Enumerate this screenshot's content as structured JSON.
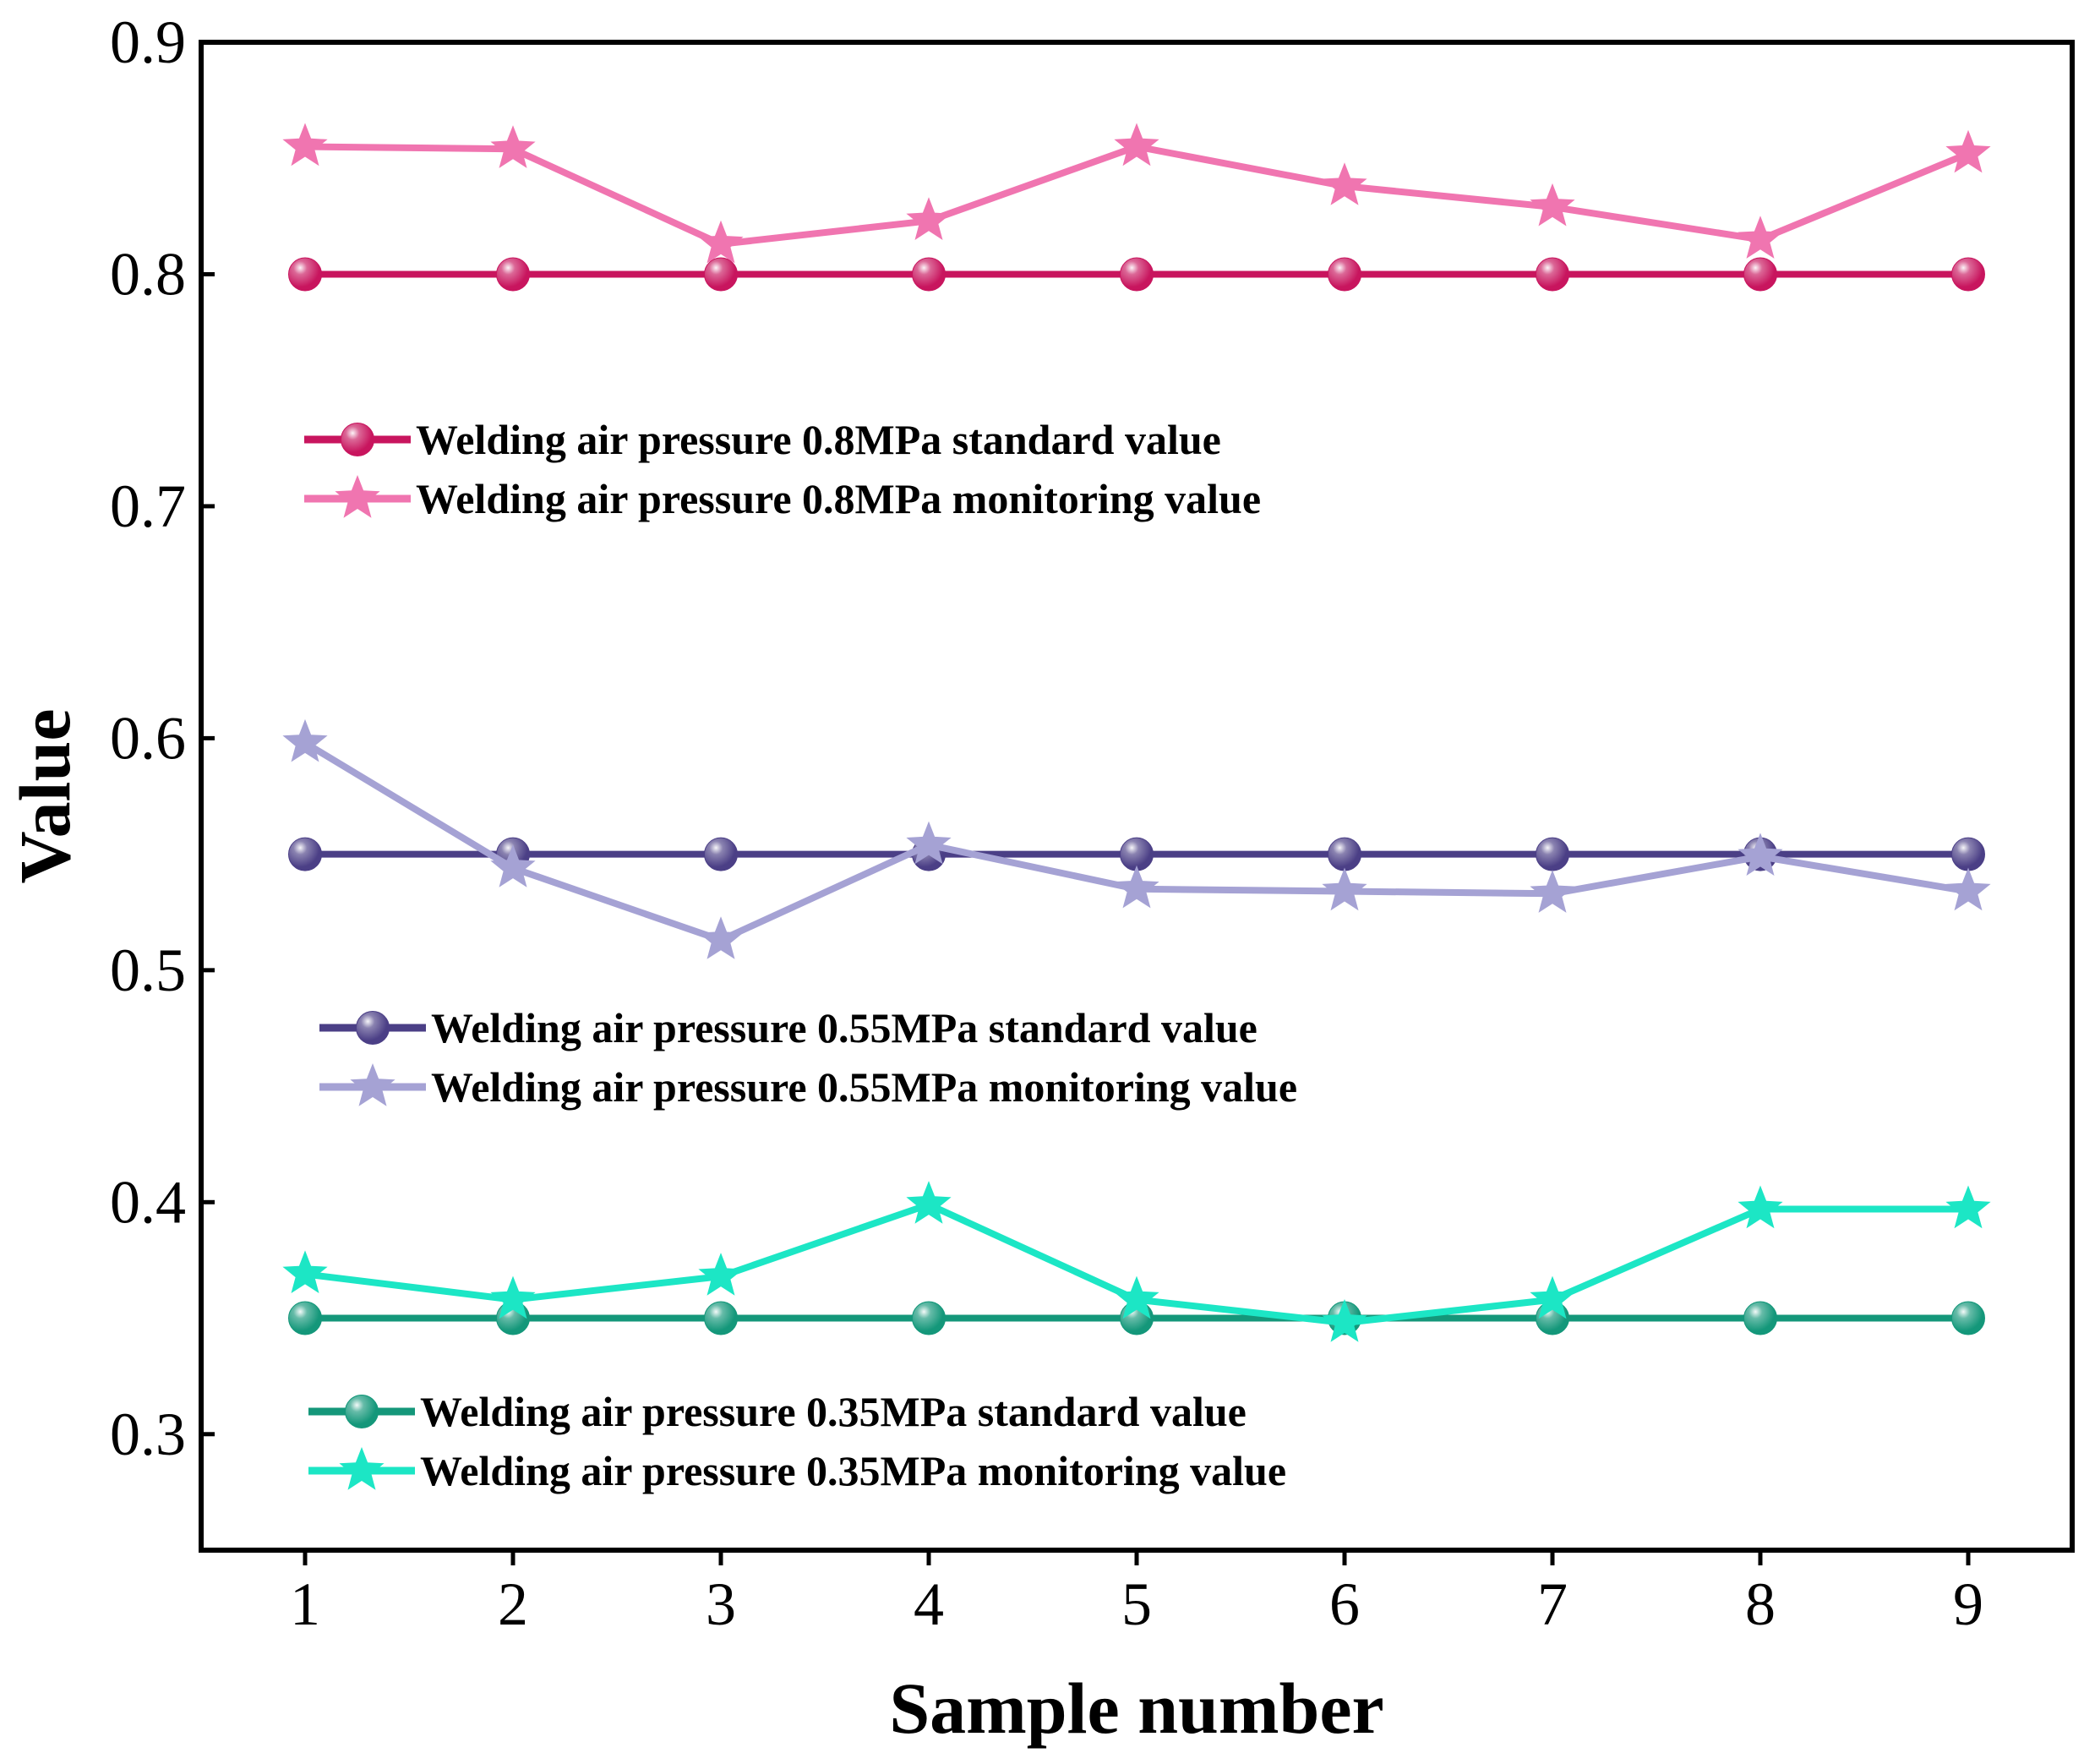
{
  "chart_data": {
    "type": "line",
    "xlabel": "Sample number",
    "ylabel": "Value",
    "x": [
      1,
      2,
      3,
      4,
      5,
      6,
      7,
      8,
      9
    ],
    "x_ticks": [
      "1",
      "2",
      "3",
      "4",
      "5",
      "6",
      "7",
      "8",
      "9"
    ],
    "xlim": [
      0.5,
      9.5
    ],
    "y_ticks": [
      "0.3",
      "0.4",
      "0.5",
      "0.6",
      "0.7",
      "0.8",
      "0.9"
    ],
    "y_tick_values": [
      0.3,
      0.4,
      0.5,
      0.6,
      0.7,
      0.8,
      0.9
    ],
    "ylim": [
      0.25,
      0.9
    ],
    "grid": false,
    "series": [
      {
        "name": "Welding air pressure 0.8MPa standard value",
        "marker": "circle",
        "color": "#C8155E",
        "values": [
          0.8,
          0.8,
          0.8,
          0.8,
          0.8,
          0.8,
          0.8,
          0.8,
          0.8
        ]
      },
      {
        "name": "Welding air pressure 0.8MPa monitoring value",
        "marker": "star",
        "color": "#F075B0",
        "values": [
          0.855,
          0.854,
          0.813,
          0.823,
          0.855,
          0.838,
          0.829,
          0.815,
          0.852
        ]
      },
      {
        "name": "Welding air pressure 0.55MPa standard value",
        "marker": "circle",
        "color": "#4B3F86",
        "values": [
          0.55,
          0.55,
          0.55,
          0.55,
          0.55,
          0.55,
          0.55,
          0.55,
          0.55
        ]
      },
      {
        "name": "Welding air pressure 0.55MPa monitoring value",
        "marker": "star",
        "color": "#A5A2D4",
        "values": [
          0.598,
          0.544,
          0.513,
          0.554,
          0.535,
          0.534,
          0.533,
          0.549,
          0.534
        ]
      },
      {
        "name": "Welding air pressure 0.35MPa standard value",
        "marker": "circle",
        "color": "#14977A",
        "values": [
          0.35,
          0.35,
          0.35,
          0.35,
          0.35,
          0.35,
          0.35,
          0.35,
          0.35
        ]
      },
      {
        "name": "Welding air pressure 0.35MPa monitoring value",
        "marker": "star",
        "color": "#1CE6C5",
        "values": [
          0.369,
          0.358,
          0.368,
          0.399,
          0.358,
          0.348,
          0.358,
          0.397,
          0.397
        ]
      }
    ],
    "legends": [
      {
        "placement": "upper-left",
        "entries": [
          0,
          1
        ]
      },
      {
        "placement": "middle-left",
        "entries": [
          2,
          3
        ]
      },
      {
        "placement": "lower-left",
        "entries": [
          4,
          5
        ]
      }
    ]
  }
}
